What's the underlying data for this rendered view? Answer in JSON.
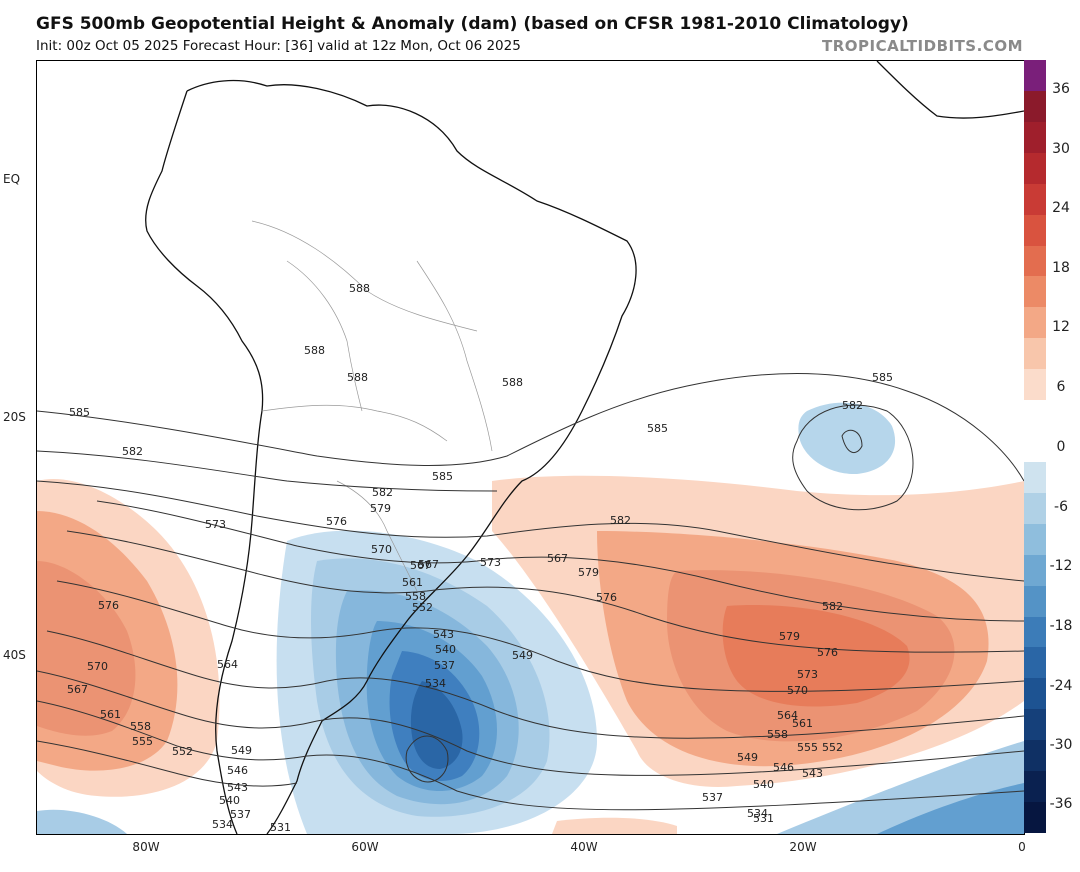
{
  "header": {
    "title": "GFS 500mb Geopotential Height & Anomaly (dam) (based on CFSR 1981-2010 Climatology)",
    "subtitle": "Init: 00z Oct 05 2025   Forecast Hour: [36]   valid at 12z Mon, Oct 06 2025",
    "brand": "TROPICALTIDBITS.COM"
  },
  "axes": {
    "lat_labels": [
      "EQ",
      "20S",
      "40S"
    ],
    "lon_labels": [
      "80W",
      "60W",
      "40W",
      "20W",
      "0"
    ]
  },
  "colorbar": {
    "labels": [
      "36",
      "30",
      "24",
      "18",
      "12",
      "6",
      "0",
      "-6",
      "-12",
      "-18",
      "-24",
      "-30",
      "-36"
    ],
    "colors": [
      "#7a1f7a",
      "#8b1a2b",
      "#9f1f2c",
      "#b52a2e",
      "#c93b35",
      "#d9533f",
      "#e36d4f",
      "#ec8a66",
      "#f3a886",
      "#f8c6ab",
      "#fbdccb",
      "#ffffff",
      "#ffffff",
      "#cfe3ef",
      "#b0d1e6",
      "#8fbedd",
      "#6fa8d2",
      "#5493c6",
      "#3c7cb8",
      "#2a66a6",
      "#1d5392",
      "#15407a",
      "#0f3064",
      "#0a2150",
      "#061640"
    ]
  },
  "contours": {
    "labels": [
      "588",
      "588",
      "588",
      "588",
      "585",
      "585",
      "585",
      "585",
      "582",
      "582",
      "582",
      "582",
      "582",
      "579",
      "579",
      "579",
      "576",
      "576",
      "576",
      "576",
      "573",
      "573",
      "573",
      "570",
      "570",
      "570",
      "567",
      "567",
      "567",
      "564",
      "564",
      "561",
      "561",
      "561",
      "558",
      "558",
      "558",
      "555",
      "555",
      "552",
      "552",
      "552",
      "549",
      "549",
      "549",
      "546",
      "546",
      "543",
      "543",
      "543",
      "540",
      "540",
      "540",
      "537",
      "537",
      "537",
      "534",
      "534",
      "534",
      "531",
      "531",
      "567"
    ]
  },
  "colors": {
    "positive_light": "#fbd6c3",
    "positive_mid": "#f3a886",
    "positive_strong": "#e77c5a",
    "negative_light": "#c7dff0",
    "negative_mid": "#86b7dc",
    "negative_strong": "#3f7fbf",
    "negative_core": "#2a66a6",
    "contour": "#333333",
    "coast": "#111111",
    "border": "#9a9a9a"
  }
}
